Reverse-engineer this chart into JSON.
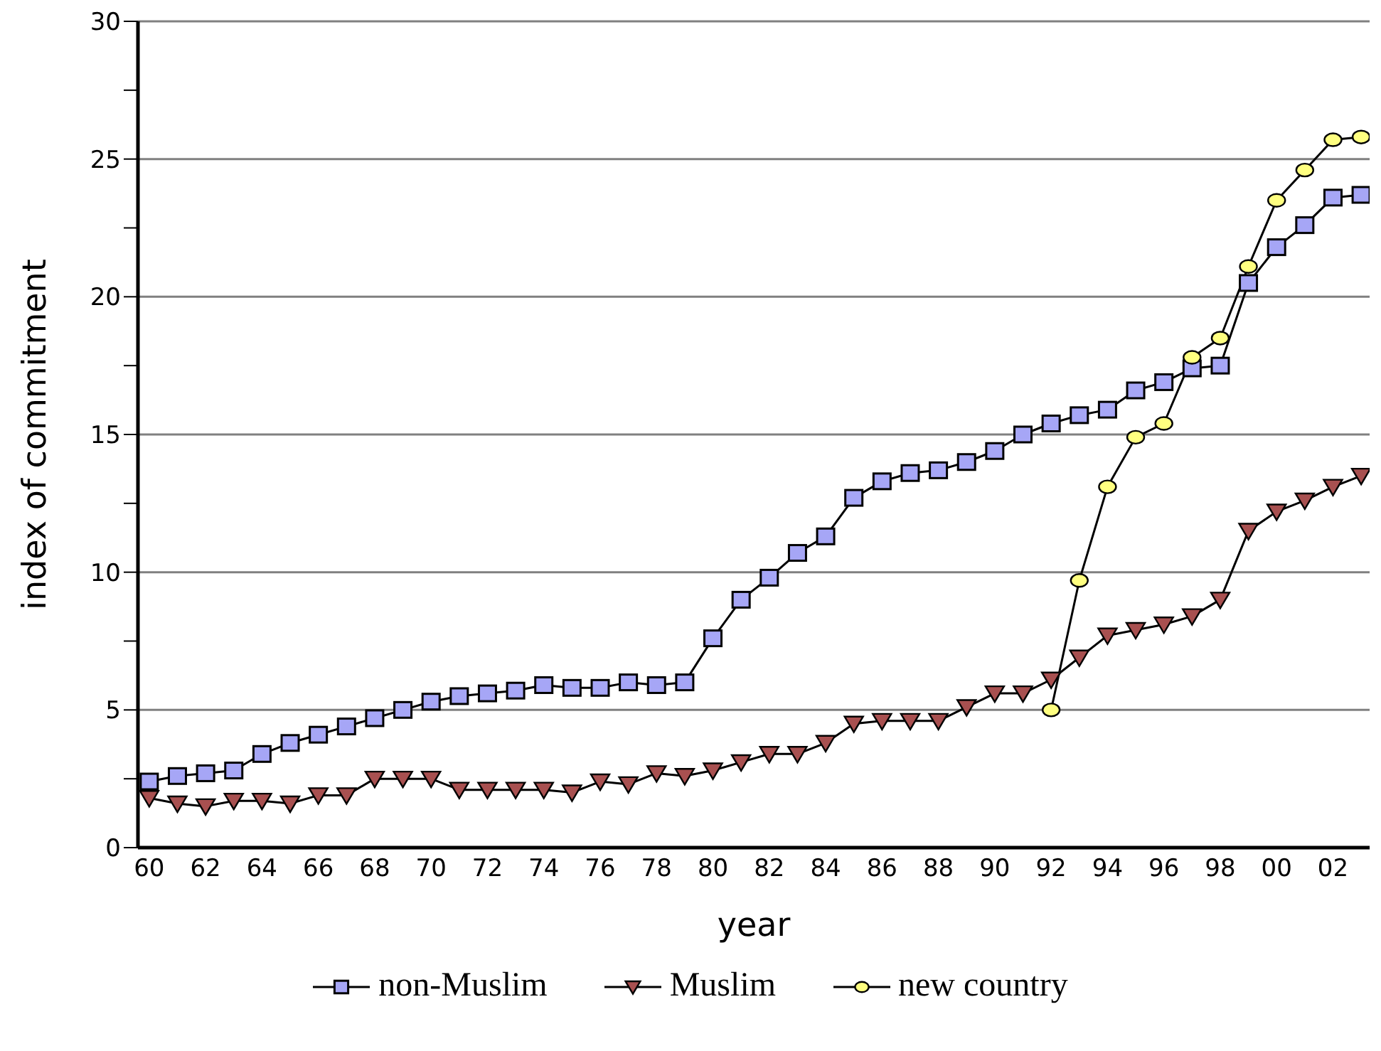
{
  "chart_data": {
    "type": "line",
    "xlabel": "year",
    "ylabel": "index of commitment",
    "categories": [
      "60",
      null,
      "62",
      null,
      "64",
      null,
      "66",
      null,
      "68",
      null,
      "70",
      null,
      "72",
      null,
      "74",
      null,
      "76",
      null,
      "78",
      null,
      "80",
      null,
      "82",
      null,
      "84",
      null,
      "86",
      null,
      "88",
      null,
      "90",
      null,
      "92",
      null,
      "94",
      null,
      "96",
      null,
      "98",
      null,
      "00",
      null,
      "02",
      null
    ],
    "series": [
      {
        "name": "non-Muslim",
        "color": "#a6a6f6",
        "marker": "square",
        "values": [
          2.4,
          2.6,
          2.7,
          2.8,
          3.4,
          3.8,
          4.1,
          4.4,
          4.7,
          5.0,
          5.3,
          5.5,
          5.6,
          5.7,
          5.9,
          5.8,
          5.8,
          6.0,
          5.9,
          6.0,
          7.6,
          9.0,
          9.8,
          10.7,
          11.3,
          12.7,
          13.3,
          13.6,
          13.7,
          14.0,
          14.4,
          15.0,
          15.4,
          15.7,
          15.9,
          16.6,
          16.9,
          17.4,
          17.5,
          20.5,
          21.8,
          22.6,
          23.6,
          23.7
        ]
      },
      {
        "name": "Muslim",
        "color": "#a85050",
        "marker": "triangle",
        "values": [
          1.8,
          1.6,
          1.5,
          1.7,
          1.7,
          1.6,
          1.9,
          1.9,
          2.5,
          2.5,
          2.5,
          2.1,
          2.1,
          2.1,
          2.1,
          2.0,
          2.4,
          2.3,
          2.7,
          2.6,
          2.8,
          3.1,
          3.4,
          3.4,
          3.8,
          4.5,
          4.6,
          4.6,
          4.6,
          5.1,
          5.6,
          5.6,
          6.1,
          6.9,
          7.7,
          7.9,
          8.1,
          8.4,
          9.0,
          11.5,
          12.2,
          12.6,
          13.1,
          13.5
        ]
      },
      {
        "name": "new country",
        "color": "#ffff80",
        "marker": "circle",
        "values": [
          null,
          null,
          null,
          null,
          null,
          null,
          null,
          null,
          null,
          null,
          null,
          null,
          null,
          null,
          null,
          null,
          null,
          null,
          null,
          null,
          null,
          null,
          null,
          null,
          null,
          null,
          null,
          null,
          null,
          null,
          null,
          null,
          5.0,
          9.7,
          13.1,
          14.9,
          15.4,
          17.8,
          18.5,
          21.1,
          23.5,
          24.6,
          25.7,
          25.8
        ]
      }
    ],
    "ylim": [
      0,
      30
    ],
    "yticks": [
      0,
      {
        "value": 2.5,
        "label": null
      },
      5,
      {
        "value": 7.5,
        "label": null
      },
      10,
      {
        "value": 12.5,
        "label": null
      },
      15,
      {
        "value": 17.5,
        "label": null
      },
      20,
      {
        "value": 22.5,
        "label": null
      },
      25,
      {
        "value": 27.5,
        "label": null
      },
      30
    ],
    "grid": "y",
    "legend": "bottom",
    "line_style": "solid"
  }
}
